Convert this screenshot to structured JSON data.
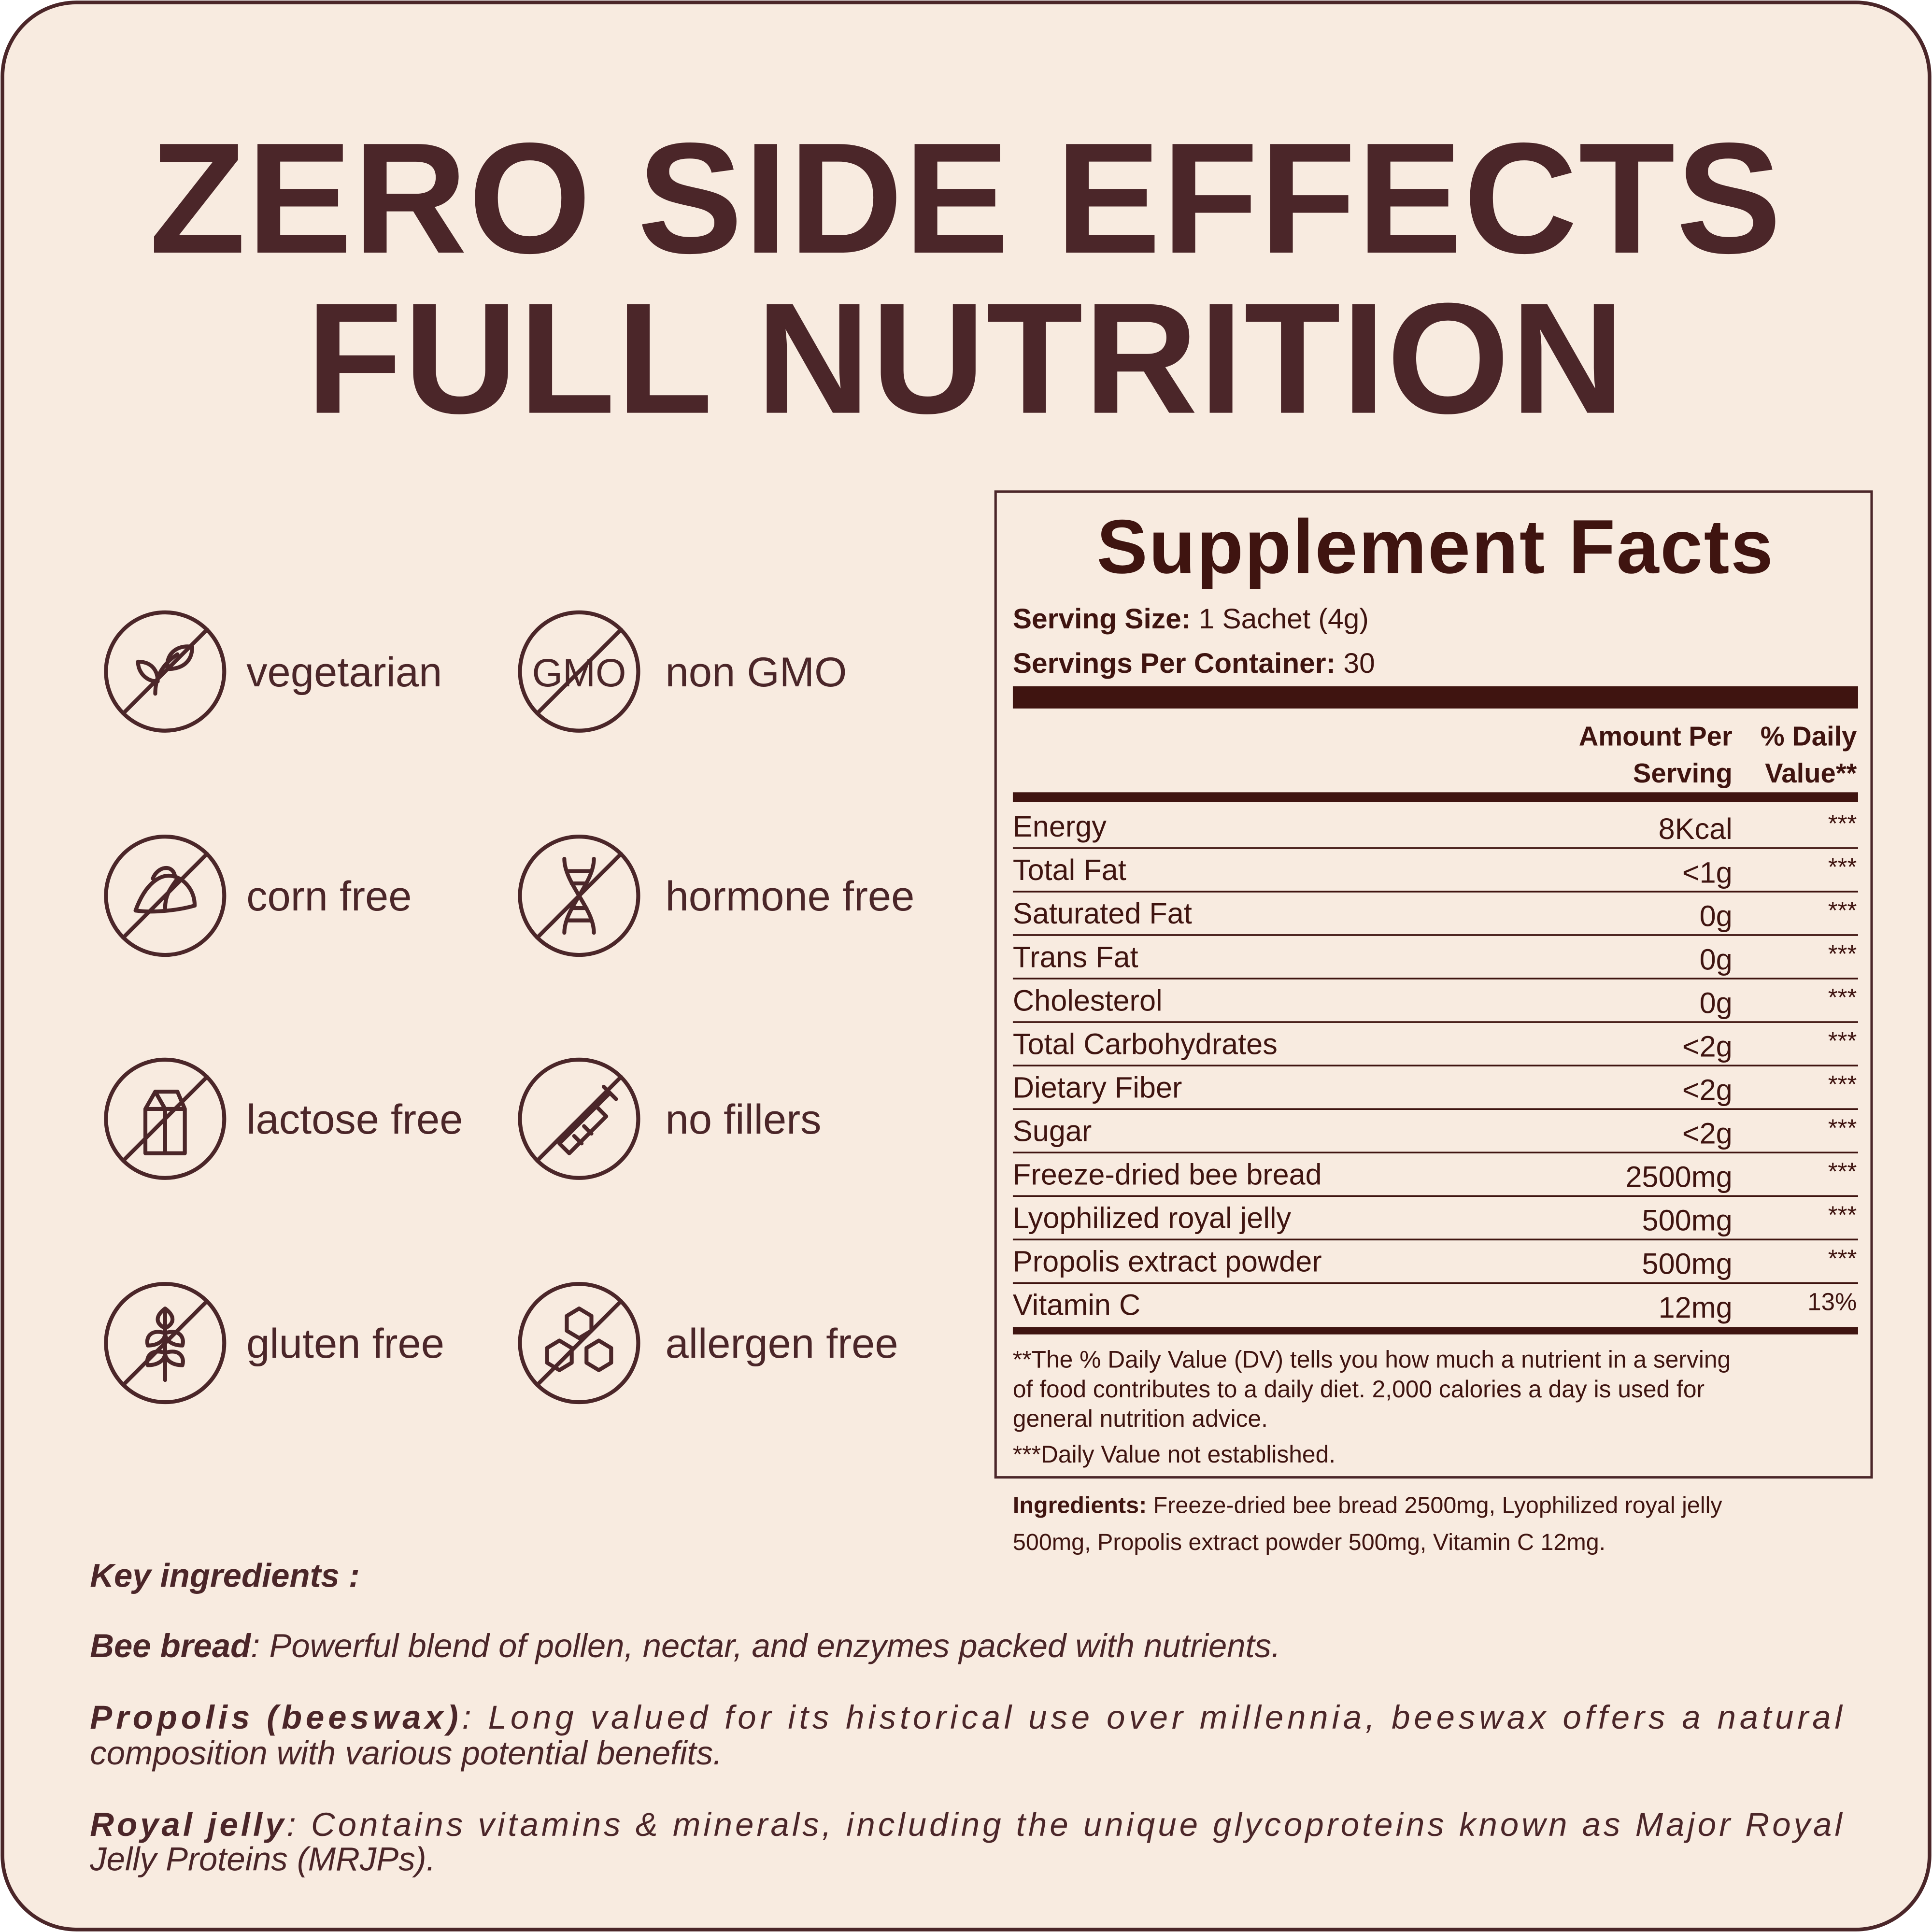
{
  "headline": [
    "ZERO SIDE EFFECTS",
    "FULL NUTRITION"
  ],
  "badges": [
    "vegetarian",
    "non GMO",
    "corn free",
    "hormone free",
    "lactose free",
    "no fillers",
    "gluten free",
    "allergen free"
  ],
  "gmo_icon_text": "GMO",
  "facts": {
    "title": "Supplement Facts",
    "serving_size_label": "Serving Size:",
    "serving_size": "1 Sachet (4g)",
    "servings_label": "Servings Per Container:",
    "servings": "30",
    "amount_header": [
      "Amount Per",
      "Serving"
    ],
    "dv_header": [
      "% Daily",
      "Value**"
    ],
    "rows": [
      [
        "Energy",
        "8Kcal",
        "***"
      ],
      [
        "Total Fat",
        "<1g",
        "***"
      ],
      [
        "Saturated Fat",
        "0g",
        "***"
      ],
      [
        "Trans Fat",
        "0g",
        "***"
      ],
      [
        "Cholesterol",
        "0g",
        "***"
      ],
      [
        "Total Carbohydrates",
        "<2g",
        "***"
      ],
      [
        "Dietary Fiber",
        "<2g",
        "***"
      ],
      [
        "Sugar",
        "<2g",
        "***"
      ],
      [
        "Freeze-dried bee bread",
        "2500mg",
        "***"
      ],
      [
        "Lyophilized royal jelly",
        "500mg",
        "***"
      ],
      [
        "Propolis extract powder",
        "500mg",
        "***"
      ],
      [
        "Vitamin C",
        "12mg",
        "13%"
      ]
    ],
    "footnote_lines": [
      "**The % Daily Value (DV) tells you how much a nutrient in a serving",
      "of food contributes to a daily diet. 2,000 calories a day is used for",
      "general nutrition advice."
    ],
    "footnote_2": "***Daily Value not established."
  },
  "ingredients": {
    "label": "Ingredients:",
    "lines": [
      " Freeze-dried bee bread 2500mg, Lyophilized royal jelly",
      "500mg, Propolis extract powder 500mg, Vitamin C 12mg."
    ]
  },
  "key_ingredients": {
    "heading": "Key ingredients :",
    "items": [
      {
        "term": "Bee bread",
        "lines": [
          ": Powerful blend of pollen, nectar, and enzymes packed with nutrients."
        ]
      },
      {
        "term": "Propolis (beeswax)",
        "lines": [
          ": Long valued for its historical use over millennia, beeswax offers a natural",
          "composition with various potential benefits."
        ]
      },
      {
        "term": "Royal jelly",
        "lines": [
          ": Contains vitamins & minerals, including the unique glycoproteins known as Major Royal",
          "Jelly Proteins (MRJPs)."
        ]
      }
    ]
  }
}
